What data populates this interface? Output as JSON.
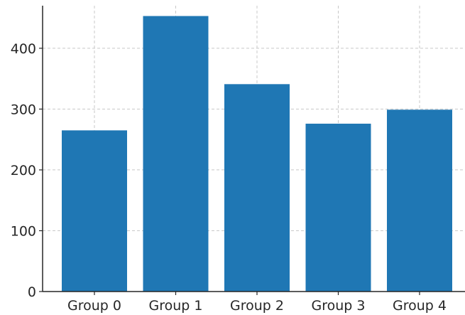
{
  "chart_data": {
    "type": "bar",
    "title": "",
    "xlabel": "",
    "ylabel": "",
    "categories": [
      "Group 0",
      "Group 1",
      "Group 2",
      "Group 3",
      "Group 4"
    ],
    "values": [
      265,
      453,
      341,
      276,
      299
    ],
    "ylim": [
      0,
      470
    ],
    "yticks": [
      0,
      100,
      200,
      300,
      400
    ],
    "grid": true,
    "bar_color": "#1f77b4",
    "grid_color": "#c8c8c8",
    "axis_color": "#262626"
  }
}
